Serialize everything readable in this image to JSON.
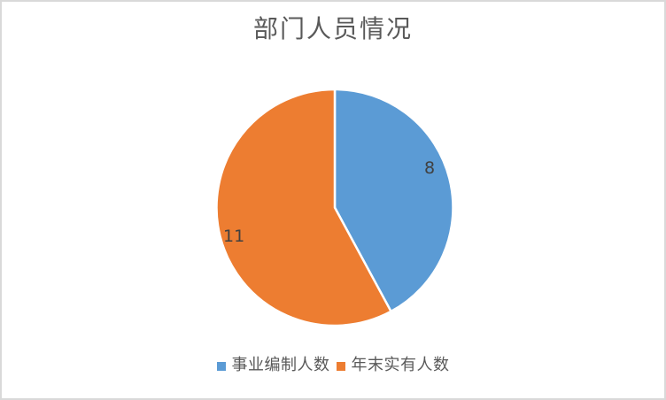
{
  "frame": {
    "background": "#ffffff",
    "border_color": "#d9d9d9"
  },
  "chart_data": {
    "type": "pie",
    "title": "部门人员情况",
    "categories": [
      "事业编制人数",
      "年末实有人数"
    ],
    "values": [
      8,
      11
    ],
    "colors": [
      "#5b9bd5",
      "#ed7d31"
    ],
    "data_labels": [
      "8",
      "11"
    ],
    "legend_position": "bottom",
    "start_angle_deg": 0,
    "direction": "clockwise",
    "title_color": "#595959",
    "data_label_color": "#404040",
    "legend_text_color": "#595959",
    "slice_separator_color": "#ffffff"
  }
}
